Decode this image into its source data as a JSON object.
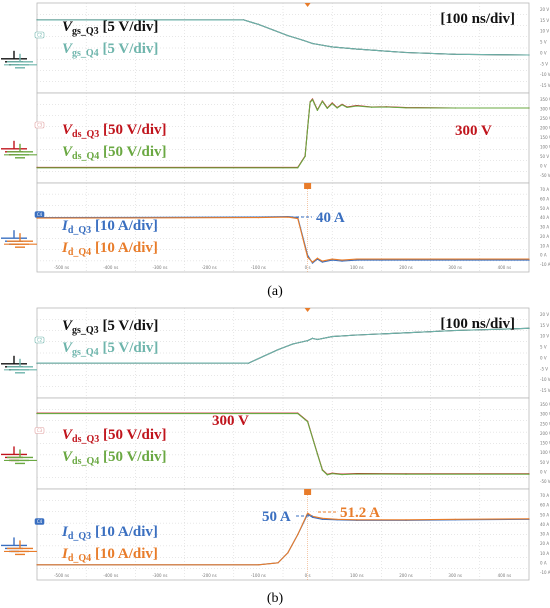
{
  "time_div": "[100 ns/div]",
  "x_ticks": [
    "-500 ns",
    "-400 ns",
    "-300 ns",
    "-200 ns",
    "-100 ns",
    "0 s",
    "100 ns",
    "200 ns",
    "300 ns",
    "400 ns"
  ],
  "panels": [
    {
      "id": "a",
      "caption": "(a)",
      "rows": [
        {
          "id": "vgs",
          "ch_tag": "C2",
          "ticks": [
            "20 V",
            "15 V",
            "10 V",
            "5 V",
            "0 V",
            "-5 V",
            "-10 V",
            "-15 V"
          ],
          "labels": [
            {
              "main": "V",
              "sub": "gs_Q3",
              "unit": "[5 V/div]",
              "color": "#111111"
            },
            {
              "main": "V",
              "sub": "gs_Q4",
              "unit": "[5 V/div]",
              "color": "#6fb5ac"
            }
          ]
        },
        {
          "id": "vds",
          "ch_tag": "C3",
          "ticks": [
            "350 V",
            "300 V",
            "250 V",
            "200 V",
            "150 V",
            "100 V",
            "50 V",
            "0 V",
            "-50 V"
          ],
          "annotation": "300 V",
          "labels": [
            {
              "main": "V",
              "sub": "ds_Q3",
              "unit": "[50 V/div]",
              "color": "#c0141c"
            },
            {
              "main": "V",
              "sub": "ds_Q4",
              "unit": "[50 V/div]",
              "color": "#6aa842"
            }
          ]
        },
        {
          "id": "id",
          "ch_tag": "C4",
          "ticks": [
            "70 A",
            "60 A",
            "50 A",
            "40 A",
            "30 A",
            "20 A",
            "10 A",
            "0 A",
            "-10 A"
          ],
          "annotation": "40 A",
          "labels": [
            {
              "main": "I",
              "sub": "d_Q3",
              "unit": "[10 A/div]",
              "color": "#3a6fc0"
            },
            {
              "main": "I",
              "sub": "d_Q4",
              "unit": "[10 A/div]",
              "color": "#e87c2a"
            }
          ]
        }
      ]
    },
    {
      "id": "b",
      "caption": "(b)",
      "rows": [
        {
          "id": "vgs",
          "ch_tag": "C2",
          "ticks": [
            "20 V",
            "15 V",
            "10 V",
            "5 V",
            "0 V",
            "-5 V",
            "-10 V",
            "-15 V"
          ],
          "labels": [
            {
              "main": "V",
              "sub": "gs_Q3",
              "unit": "[5 V/div]",
              "color": "#111111"
            },
            {
              "main": "V",
              "sub": "gs_Q4",
              "unit": "[5 V/div]",
              "color": "#6fb5ac"
            }
          ]
        },
        {
          "id": "vds",
          "ch_tag": "C3",
          "ticks": [
            "350 V",
            "300 V",
            "250 V",
            "200 V",
            "150 V",
            "100 V",
            "50 V",
            "0 V",
            "-50 V"
          ],
          "annotation": "300 V",
          "labels": [
            {
              "main": "V",
              "sub": "ds_Q3",
              "unit": "[50 V/div]",
              "color": "#c0141c"
            },
            {
              "main": "V",
              "sub": "ds_Q4",
              "unit": "[50 V/div]",
              "color": "#6aa842"
            }
          ]
        },
        {
          "id": "id",
          "ch_tag": "C4",
          "ticks": [
            "70 A",
            "60 A",
            "50 A",
            "40 A",
            "30 A",
            "20 A",
            "10 A",
            "0 A",
            "-10 A"
          ],
          "annotation": "50 A",
          "annotation2": "51.2 A",
          "labels": [
            {
              "main": "I",
              "sub": "d_Q3",
              "unit": "[10 A/div]",
              "color": "#3a6fc0"
            },
            {
              "main": "I",
              "sub": "d_Q4",
              "unit": "[10 A/div]",
              "color": "#e87c2a"
            }
          ]
        }
      ]
    }
  ],
  "chart_data": [
    {
      "type": "line",
      "panel": "a",
      "x_unit": "ns",
      "xlim": [
        -550,
        450
      ],
      "subplots": [
        {
          "id": "vgs",
          "ylim": [
            -17.5,
            22.5
          ],
          "unit": "V",
          "series": [
            {
              "name": "Vgs_Q3",
              "color": "#111111",
              "x": [
                -550,
                -130,
                -100,
                -70,
                -40,
                -10,
                10,
                50,
                100,
                200,
                300,
                450
              ],
              "y": [
                15,
                15,
                13,
                10.5,
                8,
                6,
                4.5,
                3,
                2,
                0.5,
                -0.3,
                -0.6
              ]
            },
            {
              "name": "Vgs_Q4",
              "color": "#6fb5ac",
              "x": [
                -550,
                -130,
                -100,
                -70,
                -40,
                -10,
                10,
                50,
                100,
                200,
                300,
                450
              ],
              "y": [
                15,
                15,
                13,
                10.5,
                8,
                6,
                4.5,
                3,
                2,
                0.5,
                -0.3,
                -0.6
              ]
            }
          ]
        },
        {
          "id": "vds",
          "ylim": [
            -75,
            375
          ],
          "unit": "V",
          "series": [
            {
              "name": "Vds_Q3",
              "color": "#c0141c",
              "x": [
                -550,
                -20,
                -5,
                0,
                5,
                10,
                20,
                30,
                40,
                50,
                60,
                70,
                80,
                100,
                130,
                160,
                200,
                300,
                450
              ],
              "y": [
                3,
                3,
                60,
                200,
                330,
                345,
                290,
                335,
                300,
                325,
                302,
                318,
                305,
                312,
                305,
                306,
                302,
                300,
                300
              ]
            },
            {
              "name": "Vds_Q4",
              "color": "#6aa842",
              "x": [
                -550,
                -20,
                -5,
                0,
                5,
                10,
                20,
                30,
                40,
                50,
                60,
                70,
                80,
                100,
                130,
                160,
                200,
                300,
                450
              ],
              "y": [
                1,
                1,
                58,
                198,
                328,
                342,
                288,
                333,
                298,
                322,
                300,
                316,
                303,
                310,
                304,
                305,
                301,
                300,
                300
              ]
            }
          ]
        },
        {
          "id": "id",
          "ylim": [
            -15,
            75
          ],
          "unit": "A",
          "series": [
            {
              "name": "Id_Q3",
              "color": "#3a6fc0",
              "x": [
                -550,
                -100,
                -40,
                -20,
                0,
                10,
                20,
                30,
                50,
                70,
                100,
                150,
                200,
                300,
                450
              ],
              "y": [
                40,
                40.5,
                41,
                40,
                2,
                -6,
                -2,
                -5,
                -3,
                -4,
                -3,
                -3,
                -3,
                -3,
                -3
              ]
            },
            {
              "name": "Id_Q4",
              "color": "#e87c2a",
              "x": [
                -550,
                -100,
                -40,
                -20,
                0,
                10,
                20,
                30,
                50,
                70,
                100,
                150,
                200,
                300,
                450
              ],
              "y": [
                39.5,
                40,
                40.5,
                39,
                0,
                -5,
                -1,
                -4,
                -2,
                -3,
                -2,
                -2,
                -2,
                -2,
                -2
              ]
            }
          ]
        }
      ]
    },
    {
      "type": "line",
      "panel": "b",
      "x_unit": "ns",
      "xlim": [
        -550,
        450
      ],
      "subplots": [
        {
          "id": "vgs",
          "ylim": [
            -17.5,
            22.5
          ],
          "unit": "V",
          "series": [
            {
              "name": "Vgs_Q3",
              "color": "#111111",
              "x": [
                -550,
                -120,
                -90,
                -60,
                -30,
                0,
                10,
                20,
                50,
                100,
                200,
                300,
                450
              ],
              "y": [
                -2,
                -2,
                1,
                4,
                6.5,
                8,
                9,
                8.5,
                9.8,
                10.5,
                11.5,
                12.5,
                13.5
              ]
            },
            {
              "name": "Vgs_Q4",
              "color": "#6fb5ac",
              "x": [
                -550,
                -120,
                -90,
                -60,
                -30,
                0,
                10,
                20,
                50,
                100,
                200,
                300,
                450
              ],
              "y": [
                -2,
                -2,
                1,
                4,
                6.5,
                8,
                9,
                8.5,
                9.8,
                10.5,
                11.5,
                12.5,
                13.5
              ]
            }
          ]
        },
        {
          "id": "vds",
          "ylim": [
            -75,
            375
          ],
          "unit": "V",
          "series": [
            {
              "name": "Vds_Q3",
              "color": "#c0141c",
              "x": [
                -550,
                -20,
                0,
                20,
                30,
                40,
                50,
                70,
                100,
                200,
                450
              ],
              "y": [
                300,
                300,
                260,
                100,
                20,
                -3,
                3,
                -2,
                1,
                0,
                0
              ]
            },
            {
              "name": "Vds_Q4",
              "color": "#6aa842",
              "x": [
                -550,
                -20,
                0,
                20,
                30,
                40,
                50,
                70,
                100,
                200,
                450
              ],
              "y": [
                298,
                298,
                258,
                98,
                18,
                -5,
                1,
                -4,
                -1,
                -2,
                -2
              ]
            }
          ]
        },
        {
          "id": "id",
          "ylim": [
            -15,
            75
          ],
          "unit": "A",
          "series": [
            {
              "name": "Id_Q3",
              "color": "#3a6fc0",
              "x": [
                -550,
                -100,
                -60,
                -40,
                -20,
                0,
                10,
                30,
                60,
                100,
                200,
                300,
                450
              ],
              "y": [
                0,
                0,
                2,
                12,
                30,
                50,
                47,
                45,
                44.5,
                44,
                44,
                44.5,
                45
              ]
            },
            {
              "name": "Id_Q4",
              "color": "#e87c2a",
              "x": [
                -550,
                -100,
                -60,
                -40,
                -20,
                0,
                10,
                30,
                60,
                100,
                200,
                300,
                450
              ],
              "y": [
                0,
                0,
                2,
                12,
                30,
                51.2,
                48,
                46,
                45,
                44.5,
                44.5,
                45,
                45.5
              ]
            }
          ]
        }
      ]
    }
  ]
}
